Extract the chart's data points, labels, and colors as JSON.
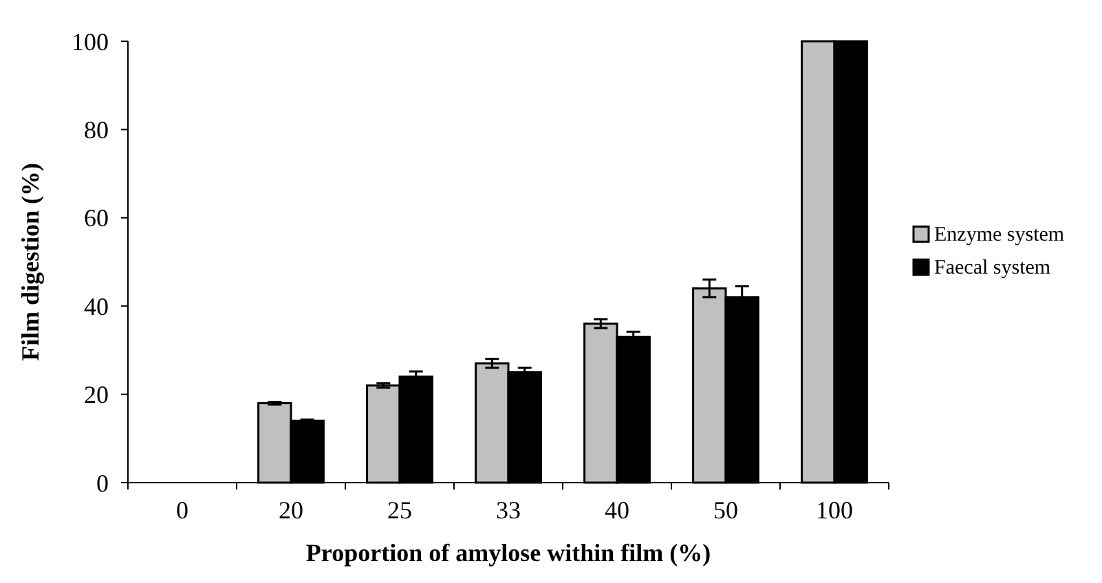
{
  "chart_data": {
    "type": "bar",
    "xlabel": "Proportion of amylose within film (%)",
    "ylabel": "Film digestion (%)",
    "categories": [
      "0",
      "20",
      "25",
      "33",
      "40",
      "50",
      "100"
    ],
    "series": [
      {
        "name": "Enzyme system",
        "color": "#c0c0c0",
        "values": [
          0,
          18,
          22,
          27,
          36,
          44,
          100
        ],
        "errors": [
          null,
          0.3,
          0.5,
          1,
          1,
          2,
          null
        ]
      },
      {
        "name": "Faecal system",
        "color": "#000000",
        "values": [
          0,
          14,
          24,
          25,
          33,
          42,
          100
        ],
        "errors": [
          null,
          0.3,
          1.2,
          1,
          1.2,
          2.5,
          null
        ]
      }
    ],
    "ylim": [
      0,
      100
    ],
    "yticks": [
      0,
      20,
      40,
      60,
      80,
      100
    ],
    "legend": "right"
  }
}
